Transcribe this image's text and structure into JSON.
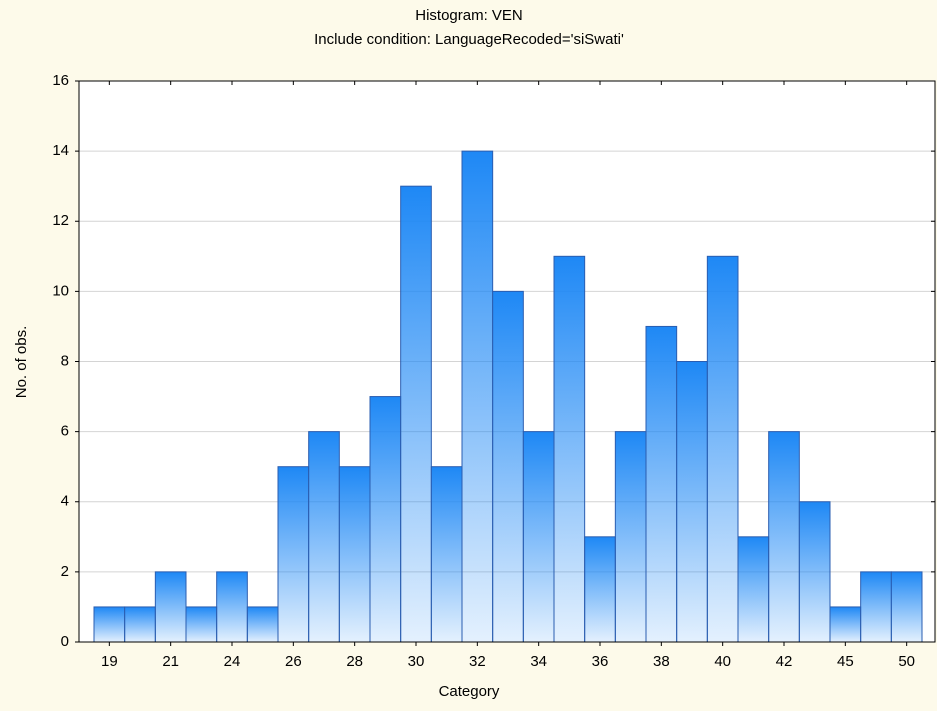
{
  "chart_data": {
    "type": "bar",
    "title": "Histogram: VEN",
    "subtitle": "Include condition: LanguageRecoded='siSwati'",
    "x_label": "Category",
    "y_label": "No. of obs.",
    "categories": [
      "19",
      null,
      "21",
      null,
      "24",
      null,
      "26",
      null,
      "28",
      null,
      "30",
      null,
      "32",
      null,
      "34",
      null,
      "36",
      null,
      "38",
      null,
      "40",
      null,
      "42",
      null,
      "45",
      null,
      "50"
    ],
    "values": [
      1,
      1,
      2,
      1,
      2,
      1,
      5,
      6,
      5,
      7,
      13,
      5,
      14,
      10,
      6,
      11,
      3,
      6,
      9,
      8,
      11,
      3,
      6,
      4,
      1,
      2,
      2
    ],
    "color": "#1e88f5",
    "ylim": [
      0,
      16
    ],
    "yticks": [
      0,
      2,
      4,
      6,
      8,
      10,
      12,
      14,
      16
    ],
    "grid": true
  }
}
